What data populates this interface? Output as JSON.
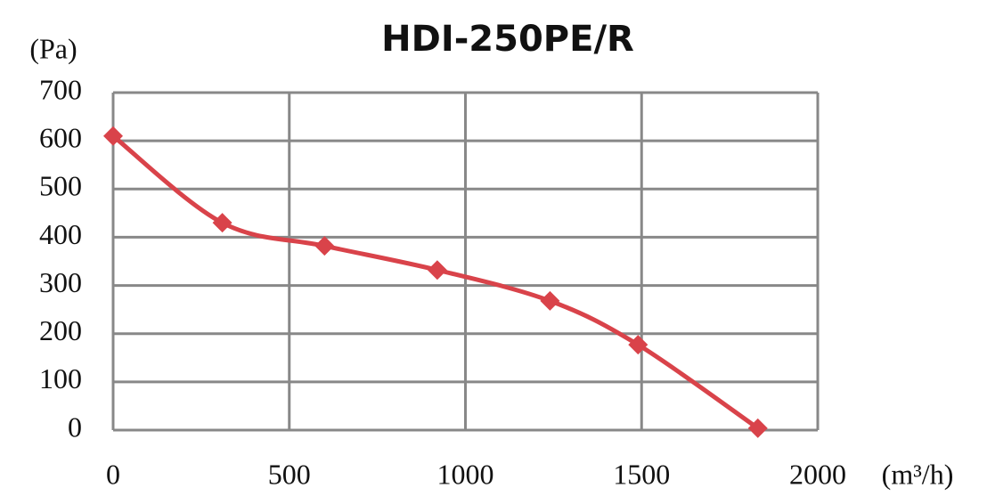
{
  "chart_data": {
    "type": "line",
    "title": "HDI-250PE/R",
    "y_label": "(Pa)",
    "x_label": "(m³/h)",
    "series": [
      {
        "name": "HDI-250PE/R",
        "color": "#d9434a",
        "x": [
          0,
          310,
          600,
          920,
          1240,
          1490,
          1830
        ],
        "values": [
          610,
          430,
          382,
          332,
          268,
          177,
          4
        ]
      }
    ],
    "xlim": [
      0,
      2000
    ],
    "xticks": [
      0,
      500,
      1000,
      1500,
      2000
    ],
    "ylim": [
      0,
      700
    ],
    "yticks": [
      0,
      100,
      200,
      300,
      400,
      500,
      600,
      700
    ],
    "grid": true
  }
}
